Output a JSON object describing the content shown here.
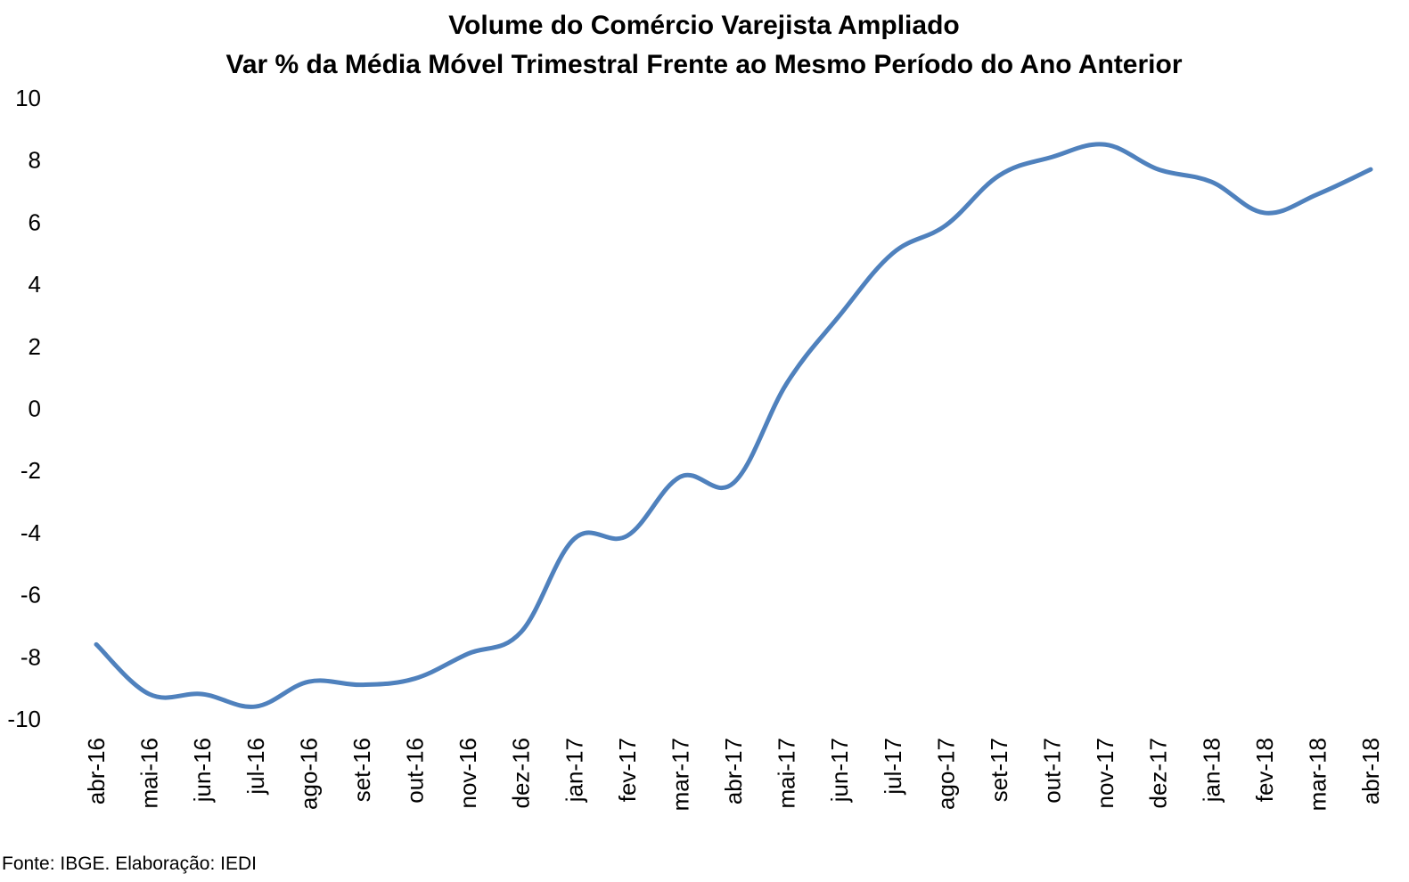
{
  "chart_data": {
    "type": "line",
    "title": "Volume do Comércio Varejista Ampliado",
    "subtitle": "Var % da Média Móvel Trimestral Frente ao Mesmo Período do Ano Anterior",
    "xlabel": "",
    "ylabel": "",
    "categories": [
      "abr-16",
      "mai-16",
      "jun-16",
      "jul-16",
      "ago-16",
      "set-16",
      "out-16",
      "nov-16",
      "dez-16",
      "jan-17",
      "fev-17",
      "mar-17",
      "abr-17",
      "mai-17",
      "jun-17",
      "jul-17",
      "ago-17",
      "set-17",
      "out-17",
      "nov-17",
      "dez-17",
      "jan-18",
      "fev-18",
      "mar-18",
      "abr-18"
    ],
    "series": [
      {
        "name": "",
        "color": "#4F81BD",
        "values": [
          -7.6,
          -9.2,
          -9.2,
          -9.6,
          -8.8,
          -8.9,
          -8.7,
          -7.9,
          -7.2,
          -4.2,
          -4.1,
          -2.2,
          -2.4,
          0.8,
          3.0,
          5.0,
          5.9,
          7.5,
          8.1,
          8.5,
          7.7,
          7.3,
          6.3,
          6.9,
          7.7
        ]
      }
    ],
    "ylim": [
      -10,
      10
    ],
    "yticks": [
      "10",
      "8",
      "6",
      "4",
      "2",
      "0",
      "-2",
      "-4",
      "-6",
      "-8",
      "-10"
    ],
    "grid": false,
    "legend": "none"
  },
  "source": "Fonte: IBGE. Elaboração: IEDI"
}
